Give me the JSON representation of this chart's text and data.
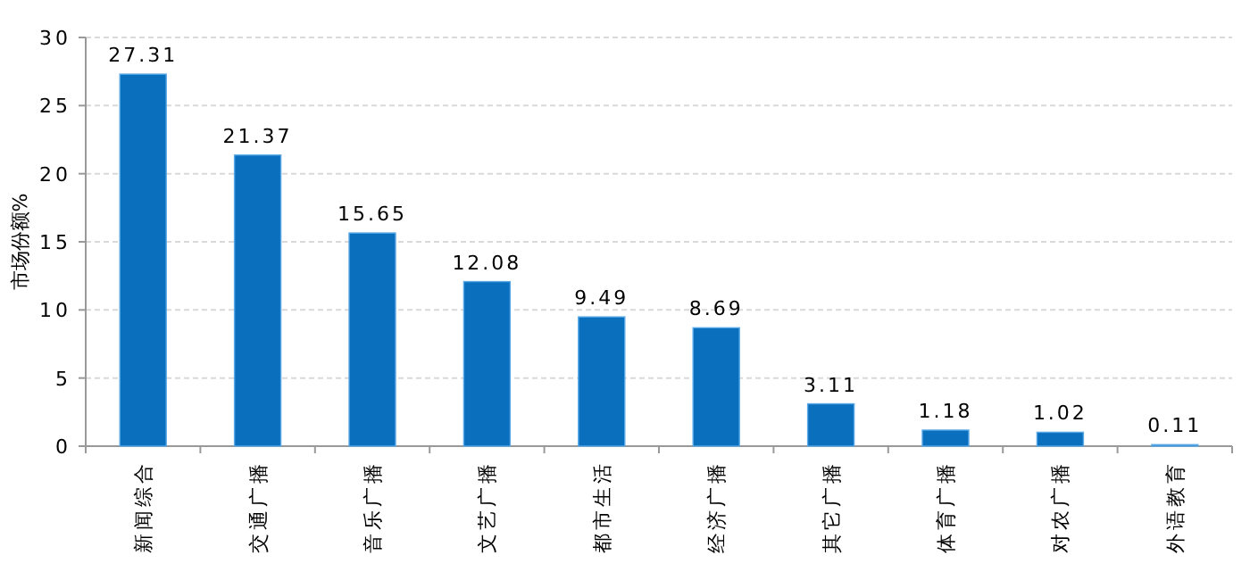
{
  "chart_data": {
    "type": "bar",
    "ylabel": "市场份额%",
    "categories": [
      "新闻综合",
      "交通广播",
      "音乐广播",
      "文艺广播",
      "都市生活",
      "经济广播",
      "其它广播",
      "体育广播",
      "对农广播",
      "外语教育"
    ],
    "values": [
      27.31,
      21.37,
      15.65,
      12.08,
      9.49,
      8.69,
      3.11,
      1.18,
      1.02,
      0.11
    ],
    "color": "#0a70be",
    "ylim": [
      0,
      30
    ],
    "yticks": [
      0,
      5,
      10,
      15,
      20,
      25,
      30
    ],
    "grid": "y",
    "data_labels": true
  }
}
